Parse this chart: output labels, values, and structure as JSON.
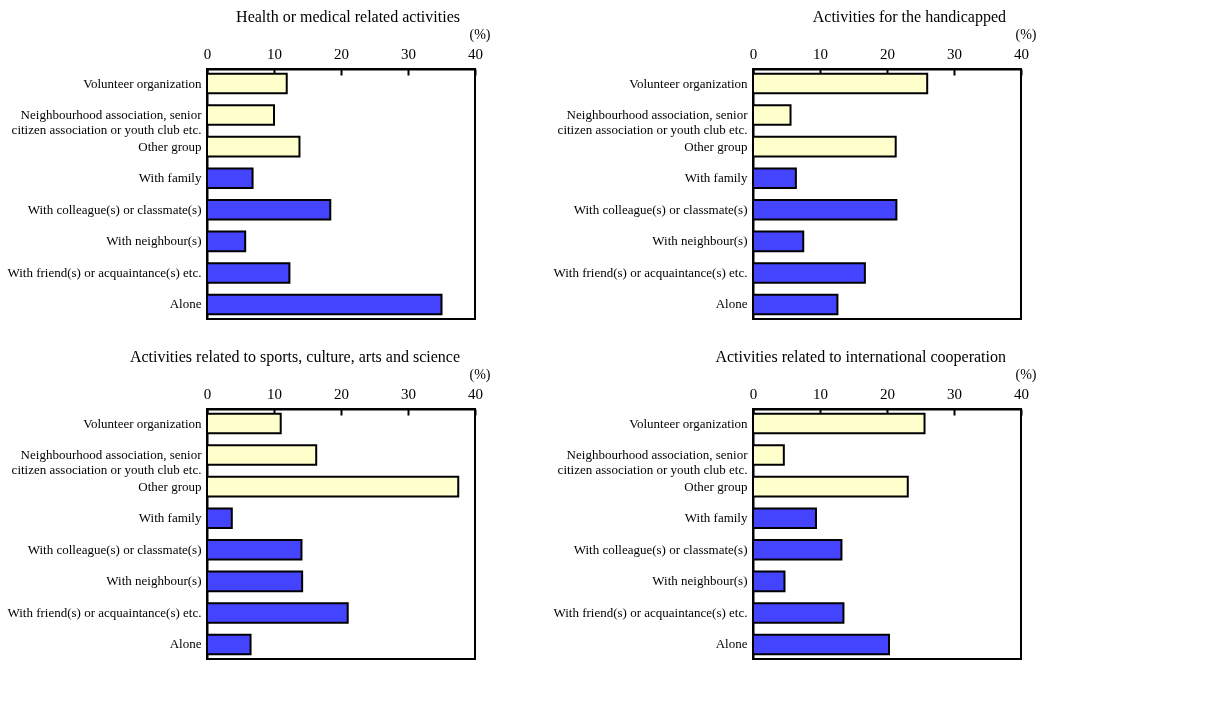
{
  "chart_data": [
    {
      "type": "bar",
      "orientation": "horizontal",
      "title": "Health or medical related activities",
      "xlabel": "(%)",
      "categories": [
        "Volunteer organization",
        "Neighbourhood association, senior\ncitizen association or youth club etc.",
        "Other group",
        "With family",
        "With colleague(s) or classmate(s)",
        "With neighbour(s)",
        "With friend(s) or acquaintance(s) etc.",
        "Alone"
      ],
      "values": [
        11.9,
        10.0,
        13.8,
        6.8,
        18.4,
        5.7,
        12.3,
        35.0
      ],
      "colors": [
        "#ffffcc",
        "#ffffcc",
        "#ffffcc",
        "#4444ff",
        "#4444ff",
        "#4444ff",
        "#4444ff",
        "#4444ff"
      ],
      "xlim": [
        0,
        40
      ],
      "xticks": [
        0,
        10,
        20,
        30,
        40
      ]
    },
    {
      "type": "bar",
      "orientation": "horizontal",
      "title": "Activities for the handicapped",
      "xlabel": "(%)",
      "categories": [
        "Volunteer organization",
        "Neighbourhood association, senior\ncitizen association or youth club etc.",
        "Other group",
        "With family",
        "With colleague(s) or classmate(s)",
        "With neighbour(s)",
        "With friend(s) or acquaintance(s) etc.",
        "Alone"
      ],
      "values": [
        26.0,
        5.6,
        21.3,
        6.4,
        21.4,
        7.5,
        16.7,
        12.6
      ],
      "colors": [
        "#ffffcc",
        "#ffffcc",
        "#ffffcc",
        "#4444ff",
        "#4444ff",
        "#4444ff",
        "#4444ff",
        "#4444ff"
      ],
      "xlim": [
        0,
        40
      ],
      "xticks": [
        0,
        10,
        20,
        30,
        40
      ]
    },
    {
      "type": "bar",
      "orientation": "horizontal",
      "title": "Activities related to sports, culture, arts and science",
      "xlabel": "(%)",
      "categories": [
        "Volunteer organization",
        "Neighbourhood association, senior\ncitizen association or youth club etc.",
        "Other group",
        "With family",
        "With colleague(s) or classmate(s)",
        "With neighbour(s)",
        "With friend(s) or acquaintance(s) etc.",
        "Alone"
      ],
      "values": [
        11.0,
        16.3,
        37.5,
        3.7,
        14.1,
        14.2,
        21.0,
        6.5
      ],
      "colors": [
        "#ffffcc",
        "#ffffcc",
        "#ffffcc",
        "#4444ff",
        "#4444ff",
        "#4444ff",
        "#4444ff",
        "#4444ff"
      ],
      "xlim": [
        0,
        40
      ],
      "xticks": [
        0,
        10,
        20,
        30,
        40
      ]
    },
    {
      "type": "bar",
      "orientation": "horizontal",
      "title": "Activities related to international cooperation",
      "xlabel": "(%)",
      "categories": [
        "Volunteer organization",
        "Neighbourhood association, senior\ncitizen association or youth club etc.",
        "Other group",
        "With family",
        "With colleague(s) or classmate(s)",
        "With neighbour(s)",
        "With friend(s) or acquaintance(s) etc.",
        "Alone"
      ],
      "values": [
        25.6,
        4.6,
        23.1,
        9.4,
        13.2,
        4.7,
        13.5,
        20.3
      ],
      "colors": [
        "#ffffcc",
        "#ffffcc",
        "#ffffcc",
        "#4444ff",
        "#4444ff",
        "#4444ff",
        "#4444ff",
        "#4444ff"
      ],
      "xlim": [
        0,
        40
      ],
      "xticks": [
        0,
        10,
        20,
        30,
        40
      ]
    }
  ]
}
